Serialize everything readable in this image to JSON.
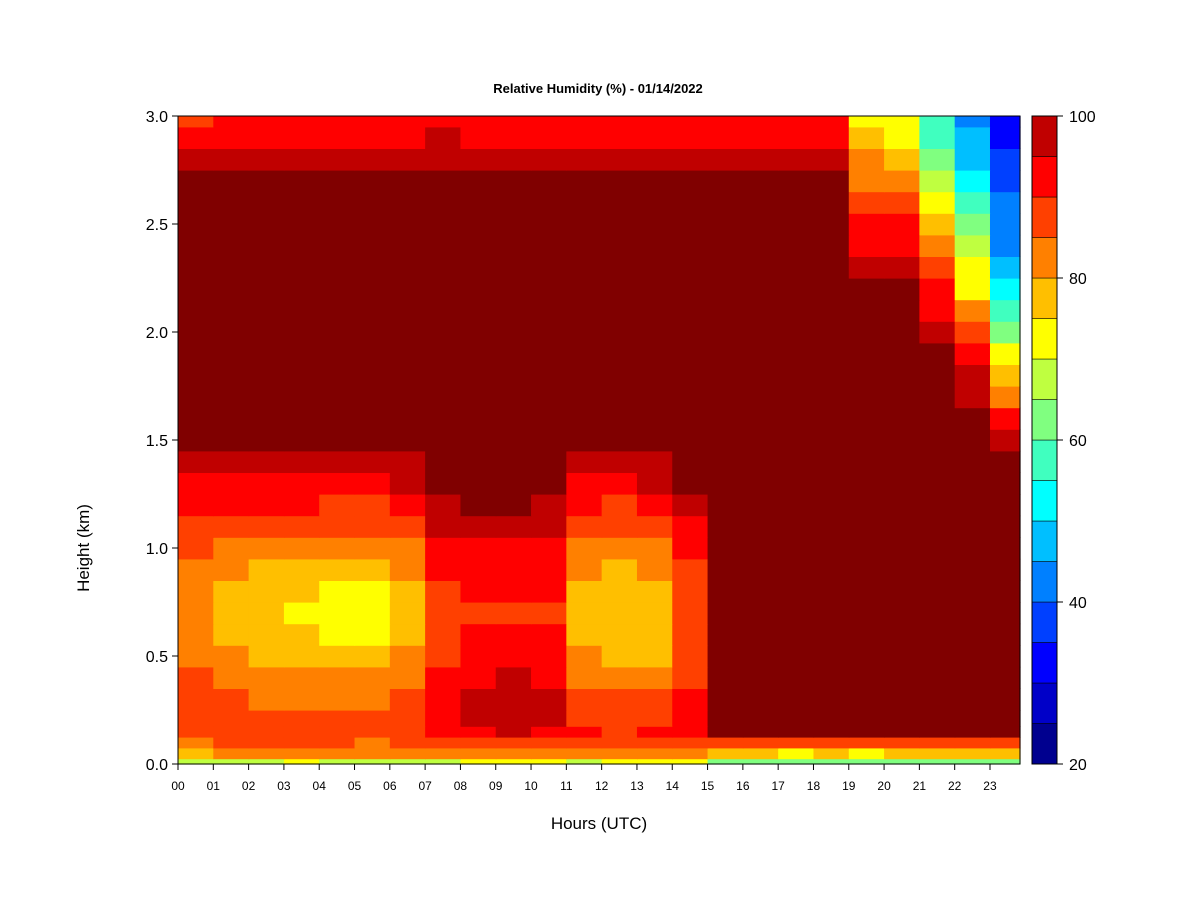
{
  "chart_data": {
    "type": "heatmap",
    "title": "Relative Humidity (%) - 01/14/2022",
    "xlabel": "Hours (UTC)",
    "ylabel": "Height (km)",
    "x_tick_labels": [
      "00",
      "01",
      "02",
      "03",
      "04",
      "05",
      "06",
      "07",
      "08",
      "09",
      "10",
      "11",
      "12",
      "13",
      "14",
      "15",
      "16",
      "17",
      "18",
      "19",
      "20",
      "21",
      "22",
      "23"
    ],
    "y_tick_labels": [
      "0.0",
      "0.5",
      "1.0",
      "1.5",
      "2.0",
      "2.5",
      "3.0"
    ],
    "y_ticks": [
      0.0,
      0.5,
      1.0,
      1.5,
      2.0,
      2.5,
      3.0
    ],
    "xlim": [
      0,
      23.85
    ],
    "ylim": [
      0,
      3.0
    ],
    "colorbar": {
      "min": 20,
      "max": 100,
      "step": 5,
      "tick_labels": [
        "20",
        "40",
        "60",
        "80",
        "100"
      ],
      "tick_values": [
        20,
        40,
        60,
        80,
        100
      ],
      "colors": [
        "#00008f",
        "#0000c8",
        "#0000ff",
        "#0040ff",
        "#0080ff",
        "#00bfff",
        "#00ffff",
        "#40ffbf",
        "#80ff80",
        "#bfff40",
        "#ffff00",
        "#ffbf00",
        "#ff8000",
        "#ff4000",
        "#ff0000",
        "#c00000"
      ],
      "top_color": "#800000"
    },
    "grid_hours": [
      0,
      1,
      2,
      3,
      4,
      5,
      6,
      7,
      8,
      9,
      10,
      11,
      12,
      13,
      14,
      15,
      16,
      17,
      18,
      19,
      20,
      21,
      22,
      23
    ],
    "grid_heights_km": [
      0.0,
      0.05,
      0.1,
      0.15,
      0.2,
      0.3,
      0.4,
      0.5,
      0.6,
      0.7,
      0.8,
      0.9,
      1.0,
      1.1,
      1.2,
      1.3,
      1.4,
      1.5,
      1.6,
      1.7,
      1.8,
      1.9,
      2.0,
      2.1,
      2.2,
      2.3,
      2.4,
      2.5,
      2.6,
      2.7,
      2.8,
      2.9,
      3.0
    ],
    "values_percent": [
      [
        66,
        68,
        68,
        70,
        68,
        66,
        66,
        68,
        70,
        70,
        72,
        68,
        70,
        70,
        72,
        64,
        62,
        62,
        60,
        60,
        60,
        62,
        62,
        62
      ],
      [
        76,
        80,
        80,
        82,
        82,
        80,
        82,
        84,
        84,
        84,
        84,
        80,
        80,
        82,
        80,
        76,
        76,
        74,
        76,
        74,
        76,
        78,
        78,
        78
      ],
      [
        84,
        86,
        86,
        86,
        86,
        84,
        86,
        88,
        88,
        88,
        88,
        86,
        86,
        86,
        86,
        88,
        88,
        86,
        88,
        86,
        88,
        88,
        88,
        88
      ],
      [
        88,
        88,
        88,
        88,
        88,
        88,
        88,
        92,
        94,
        96,
        94,
        90,
        88,
        90,
        92,
        100,
        100,
        100,
        100,
        100,
        100,
        100,
        100,
        100
      ],
      [
        88,
        88,
        86,
        86,
        86,
        86,
        88,
        94,
        96,
        98,
        96,
        88,
        88,
        88,
        92,
        100,
        100,
        100,
        100,
        100,
        100,
        100,
        100,
        100
      ],
      [
        88,
        86,
        84,
        84,
        84,
        84,
        86,
        92,
        96,
        98,
        96,
        88,
        86,
        86,
        90,
        100,
        100,
        100,
        100,
        100,
        100,
        100,
        100,
        100
      ],
      [
        86,
        84,
        80,
        80,
        80,
        80,
        82,
        90,
        94,
        96,
        94,
        84,
        82,
        82,
        88,
        100,
        100,
        100,
        100,
        100,
        100,
        100,
        100,
        100
      ],
      [
        84,
        80,
        78,
        78,
        76,
        76,
        80,
        88,
        92,
        94,
        92,
        80,
        78,
        78,
        86,
        100,
        100,
        100,
        100,
        100,
        100,
        100,
        100,
        100
      ],
      [
        82,
        78,
        76,
        76,
        74,
        74,
        78,
        86,
        90,
        90,
        90,
        78,
        76,
        76,
        86,
        100,
        100,
        100,
        100,
        100,
        100,
        100,
        100,
        100
      ],
      [
        82,
        78,
        76,
        74,
        72,
        72,
        78,
        86,
        88,
        88,
        88,
        78,
        76,
        76,
        86,
        100,
        100,
        100,
        100,
        100,
        100,
        100,
        100,
        100
      ],
      [
        82,
        78,
        76,
        76,
        74,
        74,
        78,
        88,
        90,
        90,
        90,
        78,
        76,
        78,
        86,
        100,
        100,
        100,
        100,
        100,
        100,
        100,
        100,
        100
      ],
      [
        84,
        80,
        78,
        78,
        76,
        76,
        80,
        90,
        92,
        92,
        90,
        80,
        78,
        80,
        88,
        100,
        100,
        100,
        100,
        100,
        100,
        100,
        100,
        100
      ],
      [
        86,
        84,
        82,
        82,
        80,
        80,
        84,
        92,
        94,
        94,
        92,
        84,
        82,
        84,
        90,
        100,
        100,
        100,
        100,
        100,
        100,
        100,
        100,
        100
      ],
      [
        88,
        88,
        86,
        86,
        86,
        86,
        88,
        96,
        98,
        98,
        96,
        88,
        86,
        88,
        94,
        100,
        100,
        100,
        100,
        100,
        100,
        100,
        100,
        100
      ],
      [
        90,
        90,
        90,
        90,
        88,
        88,
        90,
        98,
        100,
        100,
        98,
        90,
        88,
        90,
        96,
        100,
        100,
        100,
        100,
        100,
        100,
        100,
        100,
        100
      ],
      [
        94,
        94,
        94,
        94,
        92,
        92,
        96,
        100,
        100,
        100,
        100,
        94,
        94,
        96,
        100,
        100,
        100,
        100,
        100,
        100,
        100,
        100,
        100,
        100
      ],
      [
        98,
        98,
        98,
        98,
        96,
        96,
        98,
        100,
        100,
        100,
        100,
        98,
        98,
        98,
        100,
        100,
        100,
        100,
        100,
        100,
        100,
        100,
        100,
        100
      ],
      [
        100,
        100,
        100,
        100,
        100,
        100,
        100,
        100,
        100,
        100,
        100,
        100,
        100,
        100,
        100,
        100,
        100,
        100,
        100,
        100,
        100,
        100,
        100,
        96
      ],
      [
        100,
        100,
        100,
        100,
        100,
        100,
        100,
        100,
        100,
        100,
        100,
        100,
        100,
        100,
        100,
        100,
        100,
        100,
        100,
        100,
        100,
        100,
        100,
        90
      ],
      [
        100,
        100,
        100,
        100,
        100,
        100,
        100,
        100,
        100,
        100,
        100,
        100,
        100,
        100,
        100,
        100,
        100,
        100,
        100,
        100,
        100,
        100,
        98,
        84
      ],
      [
        100,
        100,
        100,
        100,
        100,
        100,
        100,
        100,
        100,
        100,
        100,
        100,
        100,
        100,
        100,
        100,
        100,
        100,
        100,
        100,
        100,
        100,
        96,
        78
      ],
      [
        100,
        100,
        100,
        100,
        100,
        100,
        100,
        100,
        100,
        100,
        100,
        100,
        100,
        100,
        100,
        100,
        100,
        100,
        100,
        100,
        100,
        100,
        92,
        72
      ],
      [
        100,
        100,
        100,
        100,
        100,
        100,
        100,
        100,
        100,
        100,
        100,
        100,
        100,
        100,
        100,
        100,
        100,
        100,
        100,
        100,
        100,
        98,
        86,
        64
      ],
      [
        100,
        100,
        100,
        100,
        100,
        100,
        100,
        100,
        100,
        100,
        100,
        100,
        100,
        100,
        100,
        100,
        100,
        100,
        100,
        100,
        100,
        94,
        80,
        56
      ],
      [
        100,
        100,
        100,
        100,
        100,
        100,
        100,
        100,
        100,
        100,
        100,
        100,
        100,
        100,
        100,
        100,
        100,
        100,
        100,
        100,
        100,
        90,
        74,
        50
      ],
      [
        100,
        100,
        100,
        100,
        100,
        100,
        100,
        100,
        100,
        100,
        100,
        100,
        100,
        100,
        100,
        100,
        100,
        100,
        100,
        96,
        96,
        86,
        70,
        48
      ],
      [
        100,
        100,
        100,
        100,
        100,
        100,
        100,
        100,
        100,
        100,
        100,
        100,
        100,
        100,
        100,
        100,
        100,
        100,
        100,
        92,
        92,
        82,
        66,
        44
      ],
      [
        100,
        100,
        100,
        100,
        100,
        100,
        100,
        100,
        100,
        100,
        100,
        100,
        100,
        100,
        100,
        100,
        100,
        100,
        100,
        90,
        90,
        78,
        62,
        42
      ],
      [
        100,
        100,
        100,
        100,
        100,
        100,
        100,
        100,
        100,
        100,
        100,
        100,
        100,
        100,
        100,
        100,
        100,
        100,
        100,
        88,
        88,
        74,
        56,
        40
      ],
      [
        100,
        100,
        100,
        100,
        100,
        100,
        100,
        100,
        100,
        100,
        100,
        100,
        100,
        100,
        100,
        100,
        100,
        100,
        100,
        84,
        84,
        68,
        52,
        38
      ],
      [
        96,
        98,
        98,
        98,
        98,
        96,
        98,
        98,
        98,
        98,
        98,
        96,
        98,
        98,
        98,
        98,
        98,
        98,
        96,
        80,
        78,
        62,
        48,
        36
      ],
      [
        92,
        94,
        94,
        94,
        94,
        92,
        94,
        96,
        94,
        94,
        94,
        92,
        94,
        94,
        94,
        94,
        94,
        94,
        92,
        76,
        74,
        58,
        46,
        34
      ],
      [
        88,
        90,
        90,
        92,
        92,
        90,
        92,
        92,
        92,
        90,
        92,
        90,
        90,
        92,
        92,
        92,
        92,
        92,
        90,
        74,
        72,
        56,
        44,
        34
      ]
    ]
  }
}
